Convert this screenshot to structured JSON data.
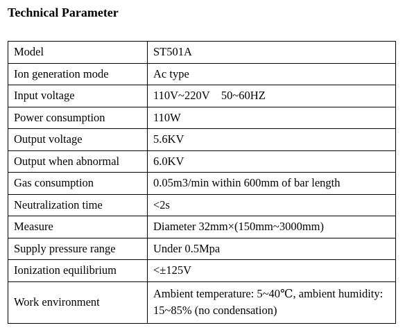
{
  "title": "Technical Parameter",
  "rows": [
    {
      "label": "Model",
      "value": "ST501A"
    },
    {
      "label": "Ion generation mode",
      "value": "Ac type"
    },
    {
      "label": "Input voltage",
      "value": "110V~220V    50~60HZ"
    },
    {
      "label": "Power consumption",
      "value": "110W"
    },
    {
      "label": "Output voltage",
      "value": "5.6KV"
    },
    {
      "label": "Output when abnormal",
      "value": "6.0KV"
    },
    {
      "label": "Gas consumption",
      "value": "0.05m3/min within 600mm of bar length"
    },
    {
      "label": "Neutralization time",
      "value": "<2s"
    },
    {
      "label": "Measure",
      "value": "Diameter 32mm×(150mm~3000mm)"
    },
    {
      "label": "Supply pressure range",
      "value": "Under 0.5Mpa"
    },
    {
      "label": "Ionization equilibrium",
      "value": "<±125V"
    },
    {
      "label": "Work environment",
      "value": "Ambient temperature: 5~40℃, ambient humidity: 15~85% (no condensation)"
    }
  ]
}
